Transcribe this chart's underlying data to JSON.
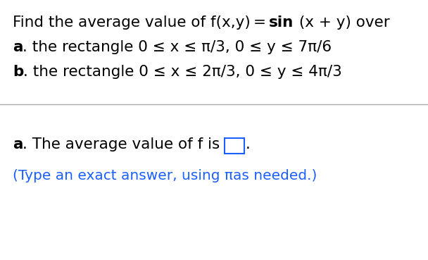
{
  "line1_prefix": "Find the average value of f(x,y) = ",
  "line1_bold": "sin",
  "line1_suffix": " (x + y) over",
  "line2_bold": "a",
  "line2_normal": ". the rectangle 0 ≤ x ≤ π/3, 0 ≤ y ≤ 7π/6",
  "line3_bold": "b",
  "line3_normal": ". the rectangle 0 ≤ x ≤ 2π/3, 0 ≤ y ≤ 4π/3",
  "answer_bold": "a",
  "answer_normal": ". The average value of f is",
  "hint_color": "#1a5fff",
  "hint_text": "(Type an exact answer, using πas needed.)",
  "divider_color": "#aaaaaa",
  "background_color": "#ffffff",
  "text_color": "#000000",
  "box_color": "#1a5fff",
  "font_size_main": 15.5,
  "font_size_hint": 14.5
}
